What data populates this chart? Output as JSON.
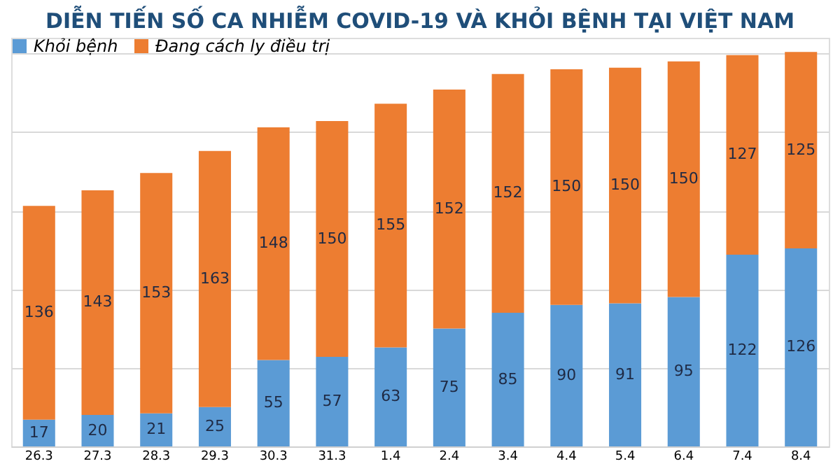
{
  "chart_data": {
    "type": "bar",
    "title": "DIỄN TIẾN SỐ CA NHIỄM COVID-19 VÀ KHỎI BỆNH TẠI VIỆT NAM",
    "categories": [
      "26.3",
      "27.3",
      "28.3",
      "29.3",
      "30.3",
      "31.3",
      "1.4",
      "2.4",
      "3.4",
      "4.4",
      "5.4",
      "6.4",
      "7.4",
      "8.4"
    ],
    "stacked": true,
    "series": [
      {
        "name": "Khỏi bệnh",
        "color": "#5b9bd5",
        "values": [
          17,
          20,
          21,
          25,
          55,
          57,
          63,
          75,
          85,
          90,
          91,
          95,
          122,
          126
        ]
      },
      {
        "name": "Đang cách ly điều trị",
        "color": "#ed7d31",
        "values": [
          136,
          143,
          153,
          163,
          148,
          150,
          155,
          152,
          152,
          150,
          150,
          150,
          127,
          125
        ]
      }
    ],
    "data_labels": true,
    "ylim": [
      0,
      260
    ],
    "yticks": [
      {
        "value": 0,
        "label": null
      },
      {
        "value": 50,
        "label": null
      },
      {
        "value": 100,
        "label": null
      },
      {
        "value": 150,
        "label": null
      },
      {
        "value": 200,
        "label": null
      },
      {
        "value": 250,
        "label": null
      }
    ],
    "tick_labels": "x",
    "grid": "y",
    "legend": "top left"
  }
}
